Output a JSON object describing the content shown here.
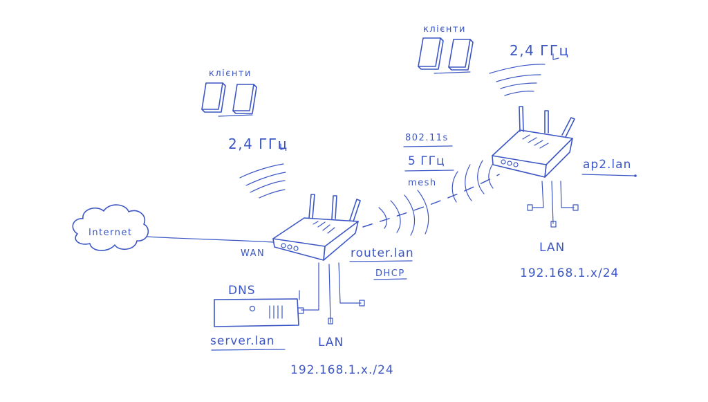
{
  "internet_label": "Internet",
  "wan_label": "WAN",
  "main_router": {
    "name": "router.lan",
    "role": "DHCP",
    "clients_label": "клієнти",
    "wifi_band": "2,4 ГГц",
    "lan_label": "LAN",
    "subnet": "192.168.1.x./24"
  },
  "server": {
    "service": "DNS",
    "name": "server.lan"
  },
  "mesh_link": {
    "standard": "802.11s",
    "band": "5 ГГц",
    "label": "mesh"
  },
  "access_point": {
    "name": "ap2.lan",
    "clients_label": "клієнти",
    "wifi_band": "2,4 ГГц",
    "lan_label": "LAN",
    "subnet": "192.168.1.x/24"
  },
  "colors": {
    "ink": "#3b56c4",
    "background": "#ffffff"
  }
}
